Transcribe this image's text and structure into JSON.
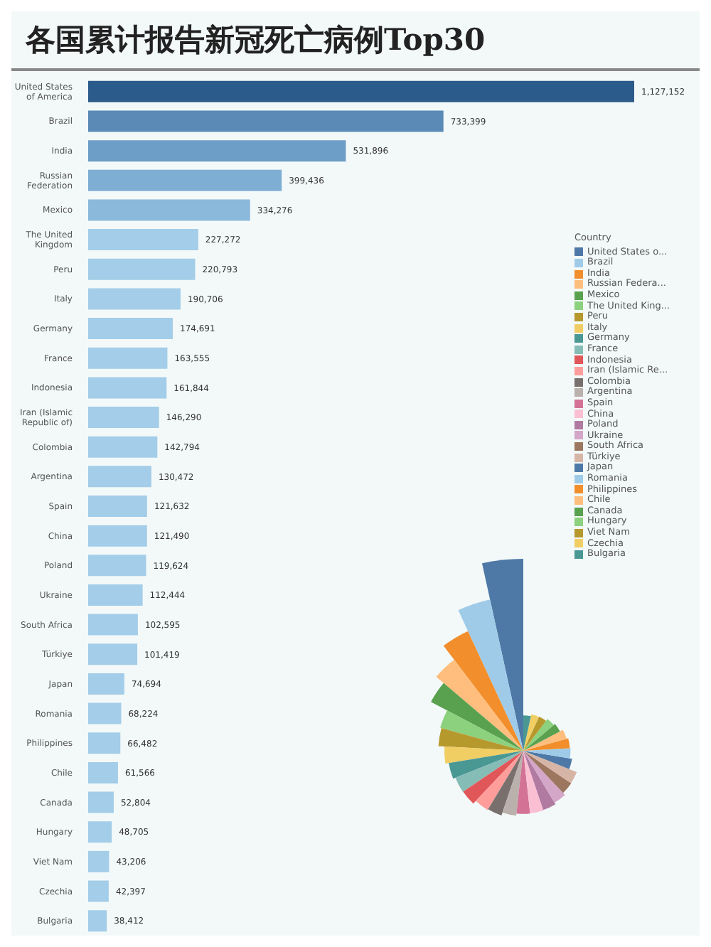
{
  "chart_data": [
    {
      "type": "bar",
      "orientation": "horizontal",
      "title": "各国累计报告新冠死亡病例Top30",
      "value_labels": [
        "1,127,152",
        "733,399",
        "531,896",
        "399,436",
        "334,276",
        "227,272",
        "220,793",
        "190,706",
        "174,691",
        "163,555",
        "161,844",
        "146,290",
        "142,794",
        "130,472",
        "121,632",
        "121,490",
        "119,624",
        "112,444",
        "102,595",
        "101,419",
        "74,694",
        "68,224",
        "66,482",
        "61,566",
        "52,804",
        "48,705",
        "43,206",
        "42,397",
        "38,412"
      ],
      "categories": [
        "United States of America",
        "Brazil",
        "India",
        "Russian Federation",
        "Mexico",
        "The United Kingdom",
        "Peru",
        "Italy",
        "Germany",
        "France",
        "Indonesia",
        "Iran (Islamic Republic of)",
        "Colombia",
        "Argentina",
        "Spain",
        "China",
        "Poland",
        "Ukraine",
        "South Africa",
        "Türkiye",
        "Japan",
        "Romania",
        "Philippines",
        "Chile",
        "Canada",
        "Hungary",
        "Viet Nam",
        "Czechia",
        "Bulgaria"
      ],
      "values": [
        1127152,
        733399,
        531896,
        399436,
        334276,
        227272,
        220793,
        190706,
        174691,
        163555,
        161844,
        146290,
        142794,
        130472,
        121632,
        121490,
        119624,
        112444,
        102595,
        101419,
        74694,
        68224,
        66482,
        61566,
        52804,
        48705,
        43206,
        42397,
        38412
      ],
      "colors": [
        "#2b5b8a",
        "#5a8ab5",
        "#6d9ec7",
        "#7eaed3",
        "#8ab9dc",
        "#a3cde8",
        "#a3cde8",
        "#a3cde8",
        "#a3cde8",
        "#a3cde8",
        "#a3cde8",
        "#a3cde8",
        "#a3cde8",
        "#a3cde8",
        "#a3cde8",
        "#a3cde8",
        "#a3cde8",
        "#a3cde8",
        "#a3cde8",
        "#a3cde8",
        "#a3cde8",
        "#a3cde8",
        "#a3cde8",
        "#a3cde8",
        "#a3cde8",
        "#a3cde8",
        "#a3cde8",
        "#a3cde8",
        "#a3cde8"
      ]
    },
    {
      "type": "other",
      "legend_title": "Country",
      "categories": [
        "United States o...",
        "Brazil",
        "India",
        "Russian Federa...",
        "Mexico",
        "The United King...",
        "Peru",
        "Italy",
        "Germany",
        "France",
        "Indonesia",
        "Iran (Islamic Re...",
        "Colombia",
        "Argentina",
        "Spain",
        "China",
        "Poland",
        "Ukraine",
        "South Africa",
        "Türkiye",
        "Japan",
        "Romania",
        "Philippines",
        "Chile",
        "Canada",
        "Hungary",
        "Viet Nam",
        "Czechia",
        "Bulgaria"
      ],
      "colors": [
        "#4e79a7",
        "#a0cbe8",
        "#f28e2b",
        "#ffbe7d",
        "#59a14f",
        "#8cd17d",
        "#b6992d",
        "#f1ce63",
        "#499894",
        "#86bcb6",
        "#e15759",
        "#ff9d9a",
        "#79706e",
        "#bab0ac",
        "#d37295",
        "#fabfd2",
        "#b07aa1",
        "#d4a6c8",
        "#9d7660",
        "#d7b5a6",
        "#4e79a7",
        "#a0cbe8",
        "#f28e2b",
        "#ffbe7d",
        "#59a14f",
        "#8cd17d",
        "#b6992d",
        "#f1ce63",
        "#499894"
      ]
    }
  ]
}
